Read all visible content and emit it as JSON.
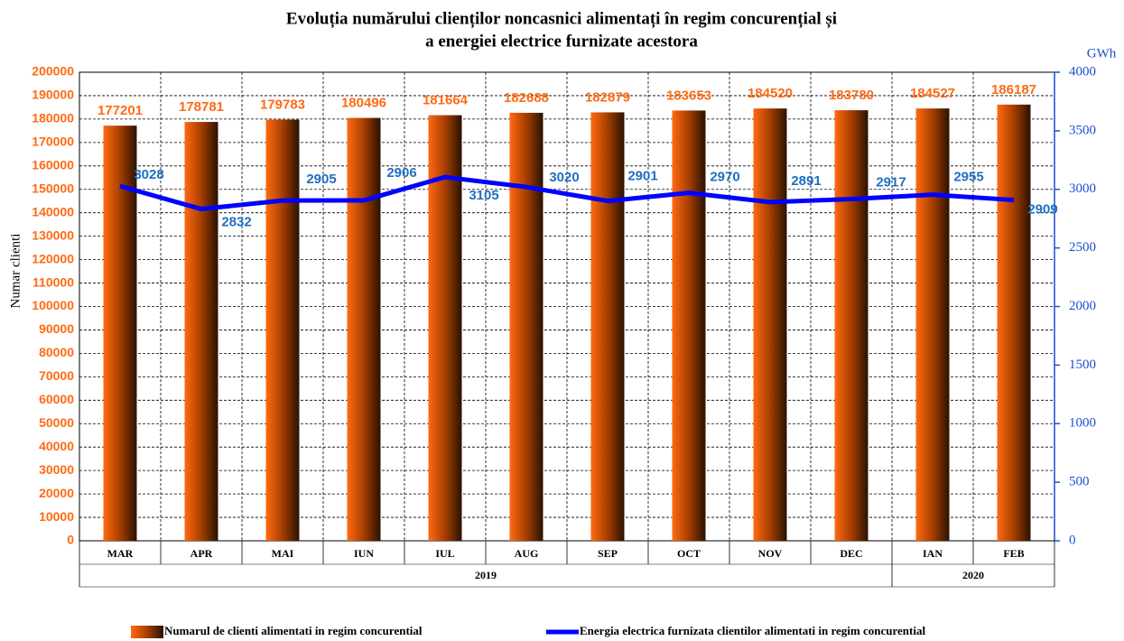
{
  "chart_data": {
    "type": "bar",
    "title": [
      "Evoluția numărului clienților noncasnici alimentați în regim concurențial și",
      "a energiei electrice furnizate acestora"
    ],
    "ylabel": "Numar clienti",
    "y2label": "GWh",
    "categories": [
      "MAR",
      "APR",
      "MAI",
      "IUN",
      "IUL",
      "AUG",
      "SEP",
      "OCT",
      "NOV",
      "DEC",
      "IAN",
      "FEB"
    ],
    "years": [
      "2019",
      "2019",
      "2019",
      "2019",
      "2019",
      "2019",
      "2019",
      "2019",
      "2019",
      "2019",
      "2020",
      "2020"
    ],
    "series": [
      {
        "name": "Numarul de clienti alimentati in regim concurential",
        "type": "bar",
        "color": "#ff6a13",
        "values": [
          177201,
          178781,
          179783,
          180496,
          181664,
          182688,
          182879,
          183653,
          184520,
          183780,
          184527,
          186187
        ]
      },
      {
        "name": "Energia electrica furnizata clientilor alimentati in regim concurential",
        "type": "line",
        "axis": "y2",
        "color": "#0000ff",
        "values": [
          3028,
          2832,
          2905,
          2906,
          3105,
          3020,
          2901,
          2970,
          2891,
          2917,
          2955,
          2909
        ]
      }
    ],
    "ylim": [
      0,
      200000
    ],
    "yticks": [
      0,
      10000,
      20000,
      30000,
      40000,
      50000,
      60000,
      70000,
      80000,
      90000,
      100000,
      110000,
      120000,
      130000,
      140000,
      150000,
      160000,
      170000,
      180000,
      190000,
      200000
    ],
    "y2lim": [
      0,
      4000
    ],
    "y2ticks": [
      0,
      500,
      1000,
      1500,
      2000,
      2500,
      3000,
      3500,
      4000
    ],
    "grid": true,
    "legend": "bottom"
  }
}
